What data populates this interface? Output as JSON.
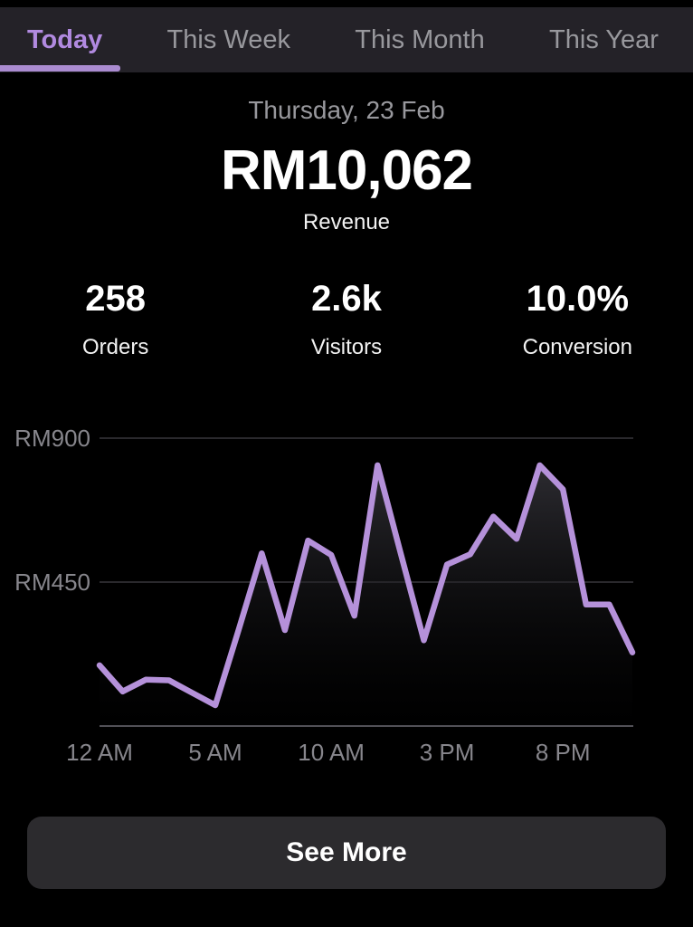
{
  "colors": {
    "background": "#000000",
    "tabbar_bg": "#242228",
    "accent_purple": "#b18ae0",
    "underline_purple": "#aa8bd0",
    "line_purple": "#b591da",
    "inactive_gray": "#98989d",
    "axis_gray": "#87868c",
    "button_bg": "#2c2b2e"
  },
  "tabs": [
    {
      "label": "Today",
      "active": true
    },
    {
      "label": "This Week",
      "active": false
    },
    {
      "label": "This Month",
      "active": false
    },
    {
      "label": "This Year",
      "active": false
    }
  ],
  "summary": {
    "date": "Thursday, 23 Feb",
    "revenue_value": "RM10,062",
    "revenue_label": "Revenue"
  },
  "stats": [
    {
      "value": "258",
      "label": "Orders"
    },
    {
      "value": "2.6k",
      "label": "Visitors"
    },
    {
      "value": "10.0%",
      "label": "Conversion"
    }
  ],
  "chart_data": {
    "type": "line",
    "title": "",
    "x": [
      "12 AM",
      "1 AM",
      "2 AM",
      "3 AM",
      "4 AM",
      "5 AM",
      "6 AM",
      "7 AM",
      "8 AM",
      "9 AM",
      "10 AM",
      "11 AM",
      "12 PM",
      "1 PM",
      "2 PM",
      "3 PM",
      "4 PM",
      "5 PM",
      "6 PM",
      "7 PM",
      "8 PM",
      "9 PM",
      "10 PM",
      "11 PM"
    ],
    "values": [
      190,
      108,
      145,
      143,
      104,
      65,
      300,
      540,
      300,
      580,
      535,
      345,
      815,
      540,
      268,
      505,
      537,
      655,
      585,
      815,
      740,
      380,
      380,
      230
    ],
    "x_tick_hours": [
      0,
      5,
      10,
      15,
      20
    ],
    "x_tick_labels": [
      "12 AM",
      "5 AM",
      "10 AM",
      "3 PM",
      "8 PM"
    ],
    "y_ticks": [
      {
        "value": 900,
        "label": "RM900"
      },
      {
        "value": 450,
        "label": "RM450"
      }
    ],
    "ylim": [
      0,
      900
    ],
    "grid": true,
    "legend": false
  },
  "footer": {
    "see_more_label": "See More"
  }
}
